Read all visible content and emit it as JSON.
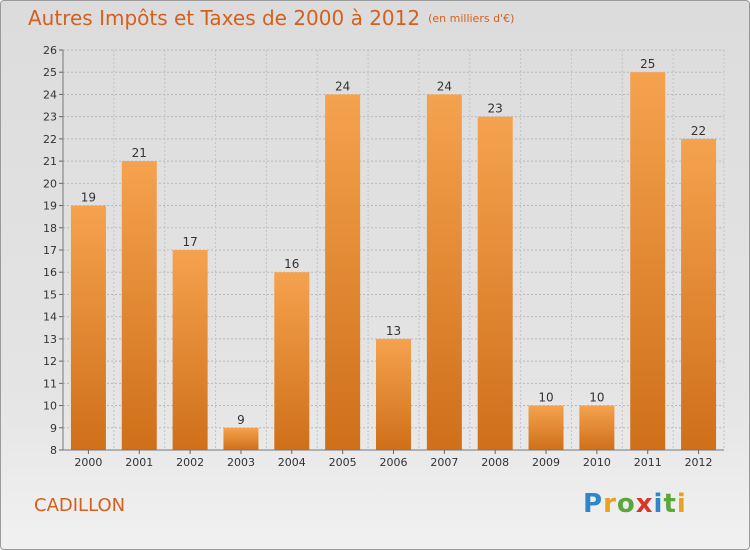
{
  "title": "Autres Impôts et Taxes de 2000 à 2012",
  "subtitle": "(en milliers d'€)",
  "commune": "CADILLON",
  "logo": {
    "text": "Proxiti"
  },
  "colors": {
    "title": "#d4601e",
    "bar_top": "#f5a24e",
    "bar_bottom": "#cf6f1a"
  },
  "chart_data": {
    "type": "bar",
    "categories": [
      "2000",
      "2001",
      "2002",
      "2003",
      "2004",
      "2005",
      "2006",
      "2007",
      "2008",
      "2009",
      "2010",
      "2011",
      "2012"
    ],
    "values": [
      19,
      21,
      17,
      9,
      16,
      24,
      13,
      24,
      23,
      10,
      10,
      25,
      22
    ],
    "ylim": [
      8,
      26
    ],
    "yticks": [
      8,
      9,
      10,
      11,
      12,
      13,
      14,
      15,
      16,
      17,
      18,
      19,
      20,
      21,
      22,
      23,
      24,
      25,
      26
    ],
    "grid": true
  }
}
